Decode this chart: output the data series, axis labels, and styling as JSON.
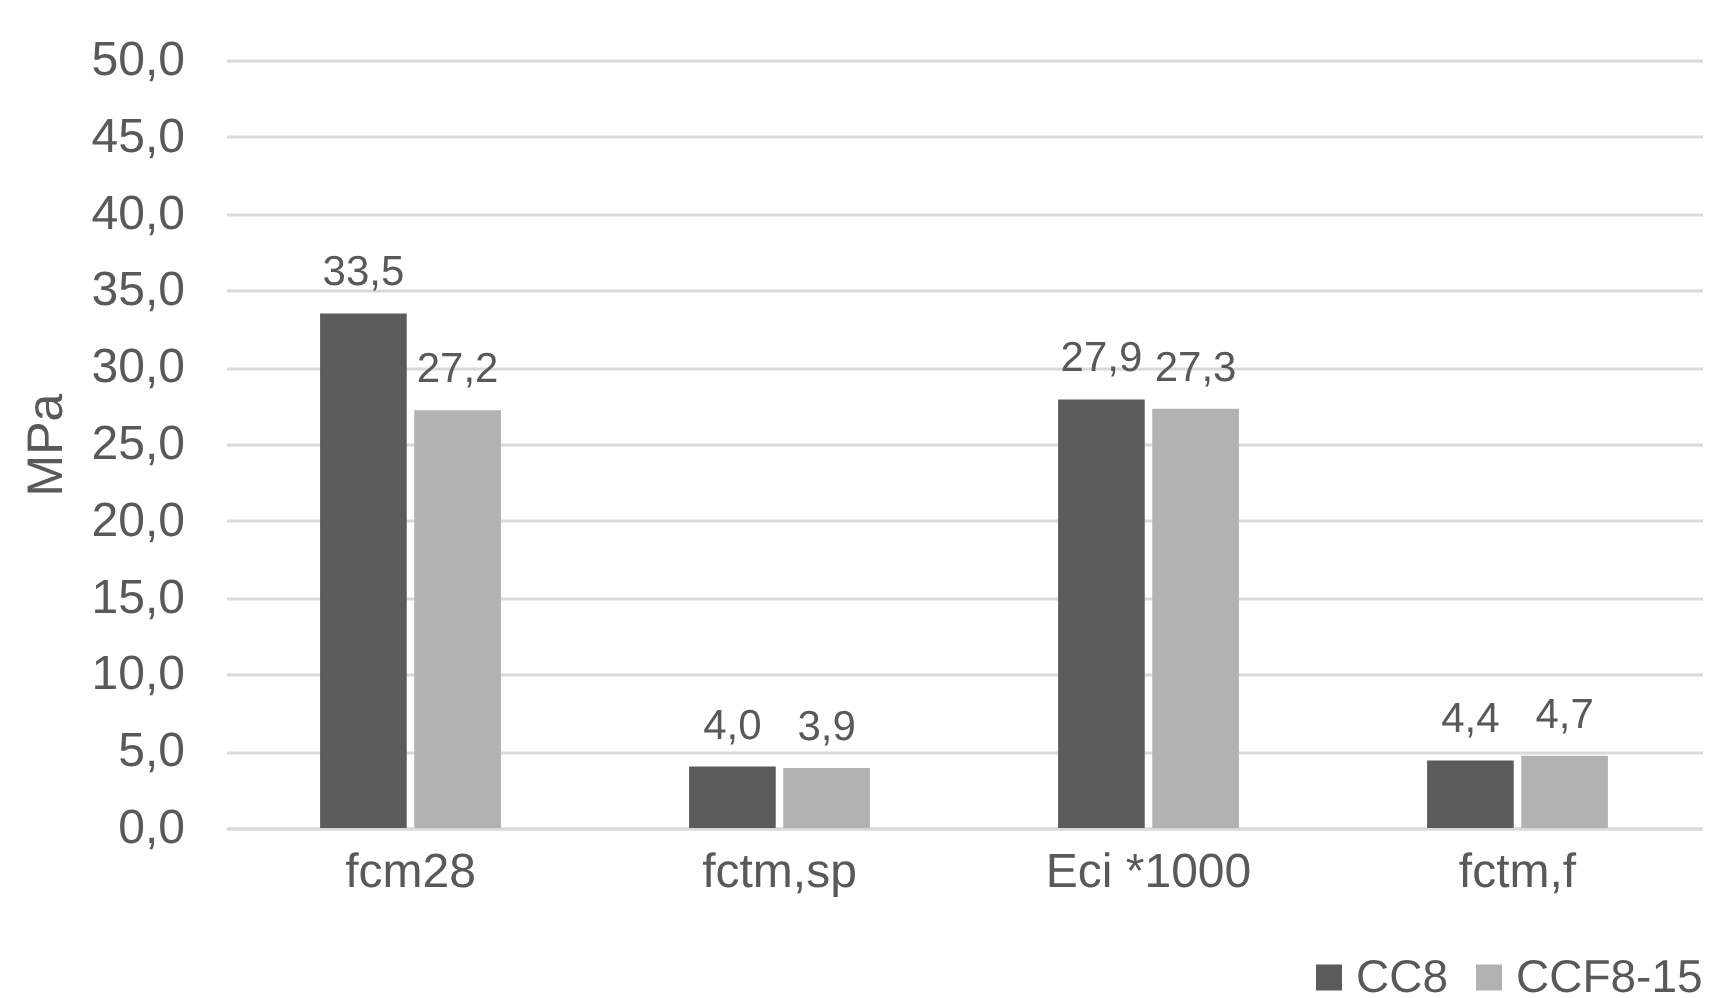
{
  "chart_data": {
    "type": "bar",
    "ylabel": "MPa",
    "categories": [
      "fcm28",
      "fctm,sp",
      "Eci *1000",
      "fctm,f"
    ],
    "series": [
      {
        "name": "CC8",
        "color": "#5b5b5b",
        "values": [
          33.5,
          4.0,
          27.9,
          4.4
        ],
        "value_labels": [
          "33,5",
          "4,0",
          "27,9",
          "4,4"
        ]
      },
      {
        "name": "CCF8-15",
        "color": "#b2b2b2",
        "values": [
          27.2,
          3.9,
          27.3,
          4.7
        ],
        "value_labels": [
          "27,2",
          "3,9",
          "27,3",
          "4,7"
        ]
      }
    ],
    "ylim": [
      0,
      50
    ],
    "yticks": [
      {
        "value": 0,
        "label": "0,0"
      },
      {
        "value": 5,
        "label": "5,0"
      },
      {
        "value": 10,
        "label": "10,0"
      },
      {
        "value": 15,
        "label": "15,0"
      },
      {
        "value": 20,
        "label": "20,0"
      },
      {
        "value": 25,
        "label": "25,0"
      },
      {
        "value": 30,
        "label": "30,0"
      },
      {
        "value": 35,
        "label": "35,0"
      },
      {
        "value": 40,
        "label": "40,0"
      },
      {
        "value": 45,
        "label": "45,0"
      },
      {
        "value": 50,
        "label": "50,0"
      }
    ],
    "grid": "y",
    "legend": "bottom right"
  }
}
